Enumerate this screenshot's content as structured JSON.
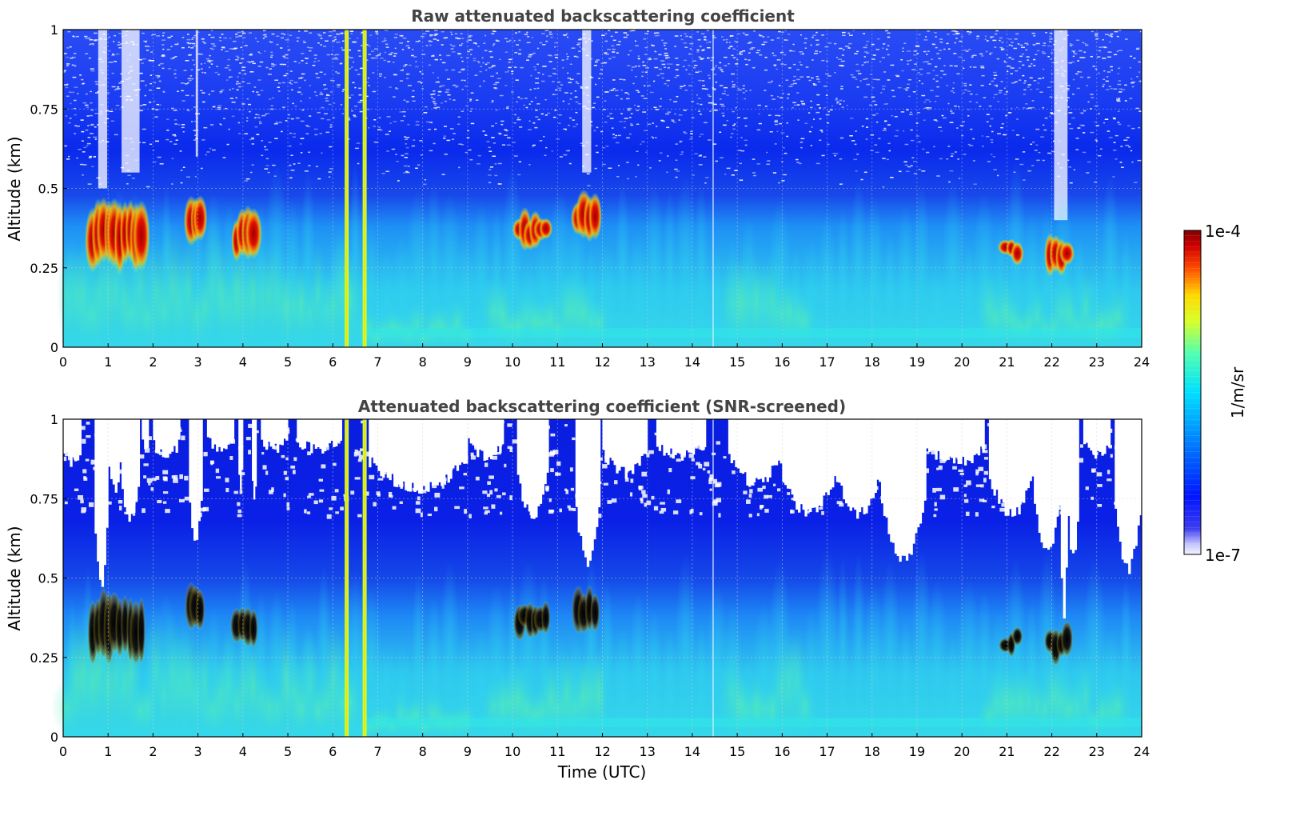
{
  "figure": {
    "colorbar": {
      "label": "1/m/sr",
      "max_label": "1e-4",
      "min_label": "1e-7",
      "scale": "log",
      "colormap": "jet"
    }
  },
  "chart_data": [
    {
      "type": "heatmap",
      "title": "Raw attenuated backscattering coefficient",
      "xlabel": "",
      "ylabel": "Altitude (km)",
      "xlim": [
        0,
        24
      ],
      "ylim": [
        0,
        1
      ],
      "x_ticks": [
        "0",
        "1",
        "2",
        "3",
        "4",
        "5",
        "6",
        "7",
        "8",
        "9",
        "10",
        "11",
        "12",
        "13",
        "14",
        "15",
        "16",
        "17",
        "18",
        "19",
        "20",
        "21",
        "22",
        "23",
        "24"
      ],
      "y_ticks": [
        "0",
        "0.25",
        "0.5",
        "0.75",
        "1"
      ],
      "grid": true,
      "value_range": [
        "1e-7",
        "1e-4"
      ],
      "features": {
        "elevated_layers": [
          {
            "t_start": 0.6,
            "t_end": 1.8,
            "alt_low": 0.22,
            "alt_high": 0.48
          },
          {
            "t_start": 2.8,
            "t_end": 3.1,
            "alt_low": 0.3,
            "alt_high": 0.5
          },
          {
            "t_start": 3.8,
            "t_end": 4.3,
            "alt_low": 0.25,
            "alt_high": 0.45
          },
          {
            "t_start": 10.1,
            "t_end": 10.8,
            "alt_low": 0.3,
            "alt_high": 0.45
          },
          {
            "t_start": 11.4,
            "t_end": 11.9,
            "alt_low": 0.32,
            "alt_high": 0.5
          },
          {
            "t_start": 20.9,
            "t_end": 21.3,
            "alt_low": 0.25,
            "alt_high": 0.35
          },
          {
            "t_start": 21.9,
            "t_end": 22.4,
            "alt_low": 0.22,
            "alt_high": 0.38
          }
        ],
        "vertical_stripes": [
          6.3,
          6.7
        ]
      }
    },
    {
      "type": "heatmap",
      "title": "Attenuated backscattering coefficient (SNR-screened)",
      "xlabel": "Time (UTC)",
      "ylabel": "Altitude (km)",
      "xlim": [
        0,
        24
      ],
      "ylim": [
        0,
        1
      ],
      "x_ticks": [
        "0",
        "1",
        "2",
        "3",
        "4",
        "5",
        "6",
        "7",
        "8",
        "9",
        "10",
        "11",
        "12",
        "13",
        "14",
        "15",
        "16",
        "17",
        "18",
        "19",
        "20",
        "21",
        "22",
        "23",
        "24"
      ],
      "y_ticks": [
        "0",
        "0.25",
        "0.5",
        "0.75",
        "1"
      ],
      "grid": true,
      "value_range": [
        "1e-7",
        "1e-4"
      ],
      "features": {
        "screened_layers_shown_black": true,
        "vertical_stripes": [
          6.3,
          6.7
        ]
      }
    }
  ]
}
